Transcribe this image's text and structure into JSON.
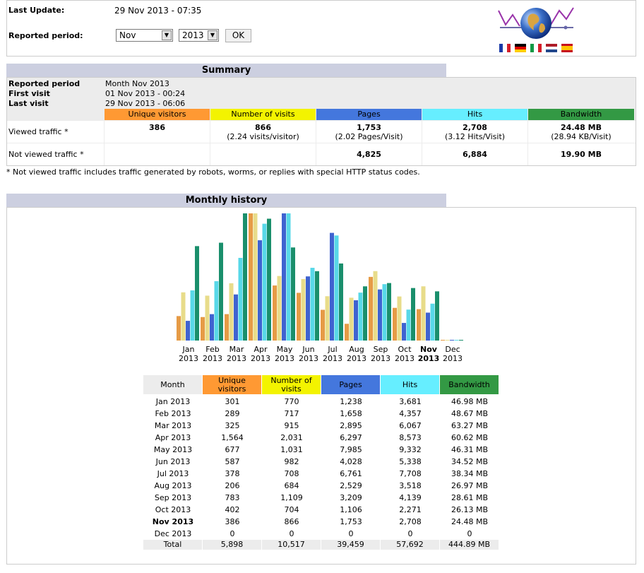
{
  "header": {
    "last_update_label": "Last Update:",
    "last_update_value": "29 Nov 2013 - 07:35",
    "period_label": "Reported period:",
    "month_select": "Nov",
    "year_select": "2013",
    "ok_label": "OK"
  },
  "summary": {
    "title": "Summary",
    "reported_period_label": "Reported period",
    "reported_period_value": "Month Nov 2013",
    "first_visit_label": "First visit",
    "first_visit_value": "01 Nov 2013 - 00:24",
    "last_visit_label": "Last visit",
    "last_visit_value": "29 Nov 2013 - 06:06",
    "columns": [
      "Unique visitors",
      "Number of visits",
      "Pages",
      "Hits",
      "Bandwidth"
    ],
    "viewed_label": "Viewed traffic *",
    "viewed": [
      {
        "main": "386",
        "sub": ""
      },
      {
        "main": "866",
        "sub": "(2.24 visits/visitor)"
      },
      {
        "main": "1,753",
        "sub": "(2.02 Pages/Visit)"
      },
      {
        "main": "2,708",
        "sub": "(3.12 Hits/Visit)"
      },
      {
        "main": "24.48 MB",
        "sub": "(28.94 KB/Visit)"
      }
    ],
    "not_viewed_label": "Not viewed traffic *",
    "not_viewed": [
      "",
      "",
      "4,825",
      "6,884",
      "19.90 MB"
    ],
    "footnote": "* Not viewed traffic includes traffic generated by robots, worms, or replies with special HTTP status codes."
  },
  "monthly": {
    "title": "Monthly history",
    "table_headers": [
      "Month",
      "Unique visitors",
      "Number of visits",
      "Pages",
      "Hits",
      "Bandwidth"
    ],
    "rows": [
      [
        "Jan 2013",
        "301",
        "770",
        "1,238",
        "3,681",
        "46.98 MB"
      ],
      [
        "Feb 2013",
        "289",
        "717",
        "1,658",
        "4,357",
        "48.67 MB"
      ],
      [
        "Mar 2013",
        "325",
        "915",
        "2,895",
        "6,067",
        "63.27 MB"
      ],
      [
        "Apr 2013",
        "1,564",
        "2,031",
        "6,297",
        "8,573",
        "60.62 MB"
      ],
      [
        "May 2013",
        "677",
        "1,031",
        "7,985",
        "9,332",
        "46.31 MB"
      ],
      [
        "Jun 2013",
        "587",
        "982",
        "4,028",
        "5,338",
        "34.52 MB"
      ],
      [
        "Jul 2013",
        "378",
        "708",
        "6,761",
        "7,708",
        "38.34 MB"
      ],
      [
        "Aug 2013",
        "206",
        "684",
        "2,529",
        "3,518",
        "26.97 MB"
      ],
      [
        "Sep 2013",
        "783",
        "1,109",
        "3,209",
        "4,139",
        "28.61 MB"
      ],
      [
        "Oct 2013",
        "402",
        "704",
        "1,106",
        "2,271",
        "26.13 MB"
      ],
      [
        "Nov 2013",
        "386",
        "866",
        "1,753",
        "2,708",
        "24.48 MB"
      ],
      [
        "Dec 2013",
        "0",
        "0",
        "0",
        "0",
        "0"
      ]
    ],
    "total": [
      "Total",
      "5,898",
      "10,517",
      "39,459",
      "57,692",
      "444.89 MB"
    ]
  },
  "chart_data": {
    "type": "bar",
    "categories": [
      "Jan",
      "Feb",
      "Mar",
      "Apr",
      "May",
      "Jun",
      "Jul",
      "Aug",
      "Sep",
      "Oct",
      "Nov",
      "Dec"
    ],
    "year_label": "2013",
    "highlight": "Nov",
    "series": [
      {
        "name": "Unique visitors",
        "color": "#e69b46",
        "values": [
          301,
          289,
          325,
          1564,
          677,
          587,
          378,
          206,
          783,
          402,
          386,
          0
        ]
      },
      {
        "name": "Number of visits",
        "color": "#e8dc8a",
        "values": [
          770,
          717,
          915,
          2031,
          1031,
          982,
          708,
          684,
          1109,
          704,
          866,
          0
        ]
      },
      {
        "name": "Pages",
        "color": "#3f63d0",
        "values": [
          1238,
          1658,
          2895,
          6297,
          7985,
          4028,
          6761,
          2529,
          3209,
          1106,
          1753,
          0
        ]
      },
      {
        "name": "Hits",
        "color": "#58d8e8",
        "values": [
          3681,
          4357,
          6067,
          8573,
          9332,
          5338,
          7708,
          3518,
          4139,
          2271,
          2708,
          0
        ]
      },
      {
        "name": "Bandwidth",
        "color": "#1a8f6c",
        "values": [
          46.98,
          48.67,
          63.27,
          60.62,
          46.31,
          34.52,
          38.34,
          26.97,
          28.61,
          26.13,
          24.48,
          0
        ]
      }
    ]
  },
  "colors": {
    "visitors": "#ff9933",
    "visits": "#f3f300",
    "pages": "#4477dd",
    "hits": "#66eeff",
    "bandwidth": "#339944",
    "title_bg": "#cccfe0"
  }
}
